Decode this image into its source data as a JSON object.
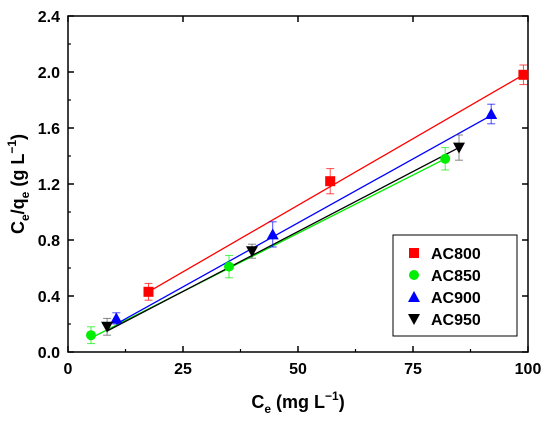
{
  "chart_data": {
    "type": "scatter",
    "xlabel": {
      "base": "C",
      "sub": "e",
      "unit_pre": " (mg L",
      "unit_sup": "−1",
      "unit_post": ")"
    },
    "ylabel": {
      "b1": "C",
      "s1": "e",
      "mid": "/q",
      "s2": "e",
      "unit_pre": " (g L",
      "unit_sup": "−1",
      "unit_post": ")"
    },
    "xlim": [
      0,
      100
    ],
    "ylim": [
      0,
      2.4
    ],
    "xticks": [
      "0",
      "25",
      "50",
      "75",
      "100"
    ],
    "yticks": [
      "0.0",
      "0.4",
      "0.8",
      "1.2",
      "1.6",
      "2.0",
      "2.4"
    ],
    "legend_position": "lower-right",
    "grid": false,
    "series": [
      {
        "name": "AC800",
        "color": "#ff0000",
        "marker": "square",
        "x": [
          17.5,
          57,
          99
        ],
        "y": [
          0.43,
          1.22,
          1.98
        ],
        "err": [
          0.06,
          0.09,
          0.07
        ],
        "fit": {
          "x": [
            17.5,
            99
          ],
          "y": [
            0.43,
            1.98
          ]
        }
      },
      {
        "name": "AC850",
        "color": "#00ee00",
        "marker": "circle",
        "x": [
          5,
          35,
          82
        ],
        "y": [
          0.12,
          0.61,
          1.38
        ],
        "err": [
          0.06,
          0.08,
          0.08
        ],
        "fit": {
          "x": [
            5,
            82
          ],
          "y": [
            0.1,
            1.38
          ]
        }
      },
      {
        "name": "AC900",
        "color": "#0000ff",
        "marker": "triangle-up",
        "x": [
          10.5,
          44.5,
          92
        ],
        "y": [
          0.24,
          0.84,
          1.7
        ],
        "err": [
          0.04,
          0.09,
          0.07
        ],
        "fit": {
          "x": [
            10.5,
            92
          ],
          "y": [
            0.2,
            1.69
          ]
        }
      },
      {
        "name": "AC950",
        "color": "#000000",
        "marker": "triangle-down",
        "x": [
          8.5,
          40,
          85
        ],
        "y": [
          0.18,
          0.72,
          1.46
        ],
        "err": [
          0.06,
          0.05,
          0.09
        ],
        "fit": {
          "x": [
            8.5,
            85
          ],
          "y": [
            0.15,
            1.46
          ]
        }
      }
    ]
  }
}
